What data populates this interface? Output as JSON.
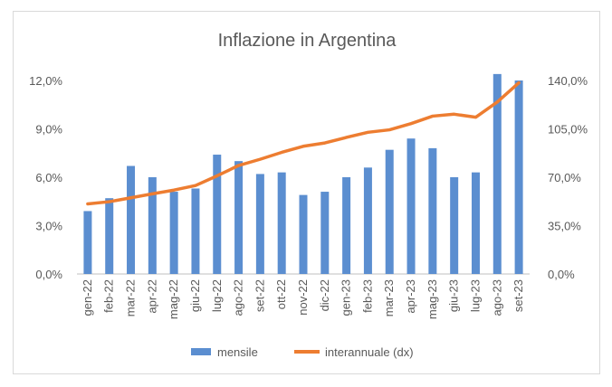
{
  "chart_data": {
    "type": "bar+line",
    "title": "Inflazione in Argentina",
    "categories": [
      "gen-22",
      "feb-22",
      "mar-22",
      "apr-22",
      "mag-22",
      "giu-22",
      "lug-22",
      "ago-22",
      "set-22",
      "ott-22",
      "nov-22",
      "dic-22",
      "gen-23",
      "feb-23",
      "mar-23",
      "apr-23",
      "mag-23",
      "giu-23",
      "lug-23",
      "ago-23",
      "set-23"
    ],
    "series": [
      {
        "name": "mensile",
        "type": "bar",
        "axis": "left",
        "color": "#5b8ed0",
        "values": [
          3.9,
          4.7,
          6.7,
          6.0,
          5.1,
          5.3,
          7.4,
          7.0,
          6.2,
          6.3,
          4.9,
          5.1,
          6.0,
          6.6,
          7.7,
          8.4,
          7.8,
          6.0,
          6.3,
          12.4,
          12.0
        ]
      },
      {
        "name": "interannuale (dx)",
        "type": "line",
        "axis": "right",
        "color": "#ed7d31",
        "values": [
          50.7,
          52.3,
          55.1,
          58.0,
          60.7,
          64.0,
          71.0,
          78.5,
          83.0,
          88.0,
          92.4,
          94.8,
          98.8,
          102.5,
          104.3,
          108.8,
          114.2,
          115.6,
          113.4,
          124.4,
          138.3
        ]
      }
    ],
    "y_left": {
      "min": 0,
      "max": 0.12,
      "ticks": [
        "0,0%",
        "3,0%",
        "6,0%",
        "9,0%",
        "12,0%"
      ]
    },
    "y_right": {
      "min": 0,
      "max": 140,
      "ticks": [
        "0,0%",
        "35,0%",
        "70,0%",
        "105,0%",
        "140,0%"
      ]
    },
    "legend": {
      "position": "bottom",
      "items": [
        "mensile",
        "interannuale (dx)"
      ]
    },
    "grid": false
  }
}
